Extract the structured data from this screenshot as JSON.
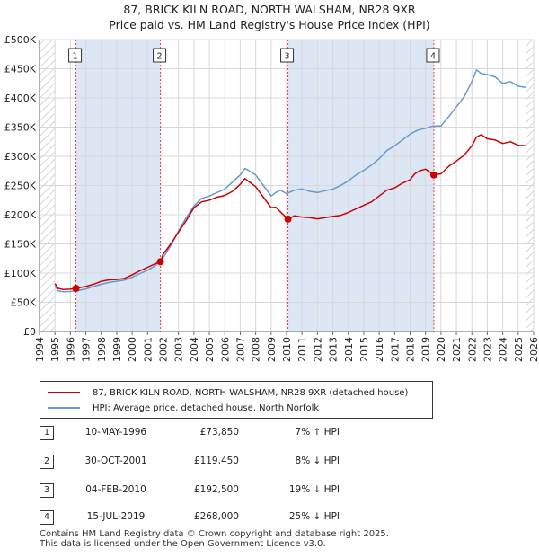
{
  "header": {
    "line1": "87, BRICK KILN ROAD, NORTH WALSHAM, NR28 9XR",
    "line2": "Price paid vs. HM Land Registry's House Price Index (HPI)"
  },
  "colors": {
    "property": "#cc0000",
    "hpi": "#6699cc",
    "band": "#dde6f5",
    "marker": "#cc0000"
  },
  "chart_data": {
    "type": "line",
    "title": "87, BRICK KILN ROAD, NORTH WALSHAM, NR28 9XR — Price paid vs. HM Land Registry's House Price Index (HPI)",
    "xlabel": "",
    "ylabel": "",
    "xlim": [
      1994,
      2026
    ],
    "ylim": [
      0,
      500000
    ],
    "y_ticks": [
      0,
      50000,
      100000,
      150000,
      200000,
      250000,
      300000,
      350000,
      400000,
      450000,
      500000
    ],
    "y_tick_labels": [
      "£0",
      "£50K",
      "£100K",
      "£150K",
      "£200K",
      "£250K",
      "£300K",
      "£350K",
      "£400K",
      "£450K",
      "£500K"
    ],
    "x_ticks": [
      1994,
      1995,
      1996,
      1997,
      1998,
      1999,
      2000,
      2001,
      2002,
      2003,
      2004,
      2005,
      2006,
      2007,
      2008,
      2009,
      2010,
      2011,
      2012,
      2013,
      2014,
      2015,
      2016,
      2017,
      2018,
      2019,
      2020,
      2021,
      2022,
      2023,
      2024,
      2025,
      2026
    ],
    "x_tick_labels": [
      "1994",
      "1995",
      "1996",
      "1997",
      "1998",
      "1999",
      "2000",
      "2001",
      "2002",
      "2003",
      "2004",
      "2005",
      "2006",
      "2007",
      "2008",
      "2009",
      "2010",
      "2011",
      "2012",
      "2013",
      "2014",
      "2015",
      "2016",
      "2017",
      "2018",
      "2019",
      "2020",
      "2021",
      "2022",
      "2023",
      "2024",
      "2025",
      "2026"
    ],
    "data_start": 1995.0,
    "data_end": 2025.5,
    "shaded_bands": [
      [
        1996.36,
        2001.83
      ],
      [
        2010.09,
        2019.54
      ]
    ],
    "hatched_regions": [
      [
        1994,
        1995.0
      ],
      [
        2025.5,
        2026
      ]
    ],
    "series": [
      {
        "name": "87, BRICK KILN ROAD, NORTH WALSHAM, NR28 9XR (detached house)",
        "color": "#cc0000",
        "x": [
          1995.0,
          1995.2,
          1995.5,
          1996.0,
          1996.36,
          1997.0,
          1997.5,
          1998.0,
          1998.5,
          1999.0,
          1999.5,
          2000.0,
          2000.5,
          2001.0,
          2001.5,
          2001.83,
          2002.0,
          2002.5,
          2003.0,
          2003.5,
          2004.0,
          2004.5,
          2005.0,
          2005.5,
          2006.0,
          2006.5,
          2007.0,
          2007.3,
          2007.6,
          2008.0,
          2008.5,
          2009.0,
          2009.3,
          2009.6,
          2010.09,
          2010.5,
          2011.0,
          2011.5,
          2012.0,
          2012.5,
          2013.0,
          2013.5,
          2014.0,
          2014.5,
          2015.0,
          2015.5,
          2016.0,
          2016.5,
          2017.0,
          2017.5,
          2018.0,
          2018.3,
          2018.6,
          2019.0,
          2019.54,
          2020.0,
          2020.5,
          2021.0,
          2021.5,
          2022.0,
          2022.3,
          2022.6,
          2023.0,
          2023.5,
          2024.0,
          2024.5,
          2025.0,
          2025.5
        ],
        "values": [
          82000,
          74000,
          72000,
          72500,
          73850,
          77000,
          81000,
          86000,
          88500,
          89000,
          91000,
          97000,
          104000,
          110000,
          116000,
          119450,
          132000,
          150000,
          170000,
          190000,
          212000,
          222000,
          225000,
          230000,
          233000,
          240000,
          252000,
          262000,
          256000,
          248000,
          230000,
          212000,
          213000,
          205000,
          192500,
          198000,
          196000,
          195000,
          193000,
          195000,
          197000,
          199000,
          204000,
          210000,
          216000,
          222000,
          232000,
          242000,
          246000,
          254000,
          260000,
          270000,
          275000,
          278000,
          268000,
          270000,
          283000,
          292000,
          302000,
          318000,
          333000,
          337000,
          330000,
          328000,
          322000,
          325000,
          319000,
          318000
        ]
      },
      {
        "name": "HPI: Average price, detached house, North Norfolk",
        "color": "#6699cc",
        "x": [
          1995.0,
          1995.2,
          1995.5,
          1996.0,
          1996.5,
          1997.0,
          1997.5,
          1998.0,
          1998.5,
          1999.0,
          1999.5,
          2000.0,
          2000.5,
          2001.0,
          2001.5,
          2002.0,
          2002.5,
          2003.0,
          2003.5,
          2004.0,
          2004.5,
          2005.0,
          2005.5,
          2006.0,
          2006.5,
          2007.0,
          2007.3,
          2007.6,
          2008.0,
          2008.5,
          2009.0,
          2009.3,
          2009.6,
          2010.0,
          2010.5,
          2011.0,
          2011.5,
          2012.0,
          2012.5,
          2013.0,
          2013.5,
          2014.0,
          2014.5,
          2015.0,
          2015.5,
          2016.0,
          2016.5,
          2017.0,
          2017.5,
          2018.0,
          2018.5,
          2019.0,
          2019.5,
          2020.0,
          2020.5,
          2021.0,
          2021.5,
          2022.0,
          2022.3,
          2022.6,
          2023.0,
          2023.5,
          2024.0,
          2024.5,
          2025.0,
          2025.5
        ],
        "values": [
          78000,
          70000,
          68000,
          68500,
          70000,
          73000,
          77000,
          81000,
          84000,
          86000,
          88000,
          93000,
          99000,
          105000,
          113000,
          126000,
          147000,
          172000,
          195000,
          215000,
          228000,
          232000,
          238000,
          244000,
          256000,
          268000,
          279000,
          275000,
          268000,
          250000,
          232000,
          238000,
          242000,
          236000,
          242000,
          244000,
          240000,
          238000,
          241000,
          244000,
          250000,
          258000,
          268000,
          276000,
          285000,
          296000,
          310000,
          318000,
          328000,
          338000,
          345000,
          348000,
          352000,
          352000,
          368000,
          385000,
          402000,
          428000,
          448000,
          442000,
          440000,
          436000,
          425000,
          428000,
          420000,
          418000
        ]
      }
    ],
    "sales": [
      {
        "label": "1",
        "x": 1996.36,
        "y": 73850
      },
      {
        "label": "2",
        "x": 2001.83,
        "y": 119450
      },
      {
        "label": "3",
        "x": 2010.09,
        "y": 192500
      },
      {
        "label": "4",
        "x": 2019.54,
        "y": 268000
      }
    ]
  },
  "legend": {
    "property_label": "87, BRICK KILN ROAD, NORTH WALSHAM, NR28 9XR (detached house)",
    "hpi_label": "HPI: Average price, detached house, North Norfolk"
  },
  "transactions": [
    {
      "num": "1",
      "date": "10-MAY-1996",
      "price": "£73,850",
      "hpi": "7% ↑ HPI"
    },
    {
      "num": "2",
      "date": "30-OCT-2001",
      "price": "£119,450",
      "hpi": "8% ↓ HPI"
    },
    {
      "num": "3",
      "date": "04-FEB-2010",
      "price": "£192,500",
      "hpi": "19% ↓ HPI"
    },
    {
      "num": "4",
      "date": "15-JUL-2019",
      "price": "£268,000",
      "hpi": "25% ↓ HPI"
    }
  ],
  "footer": {
    "line1": "Contains HM Land Registry data © Crown copyright and database right 2025.",
    "line2": "This data is licensed under the Open Government Licence v3.0."
  }
}
